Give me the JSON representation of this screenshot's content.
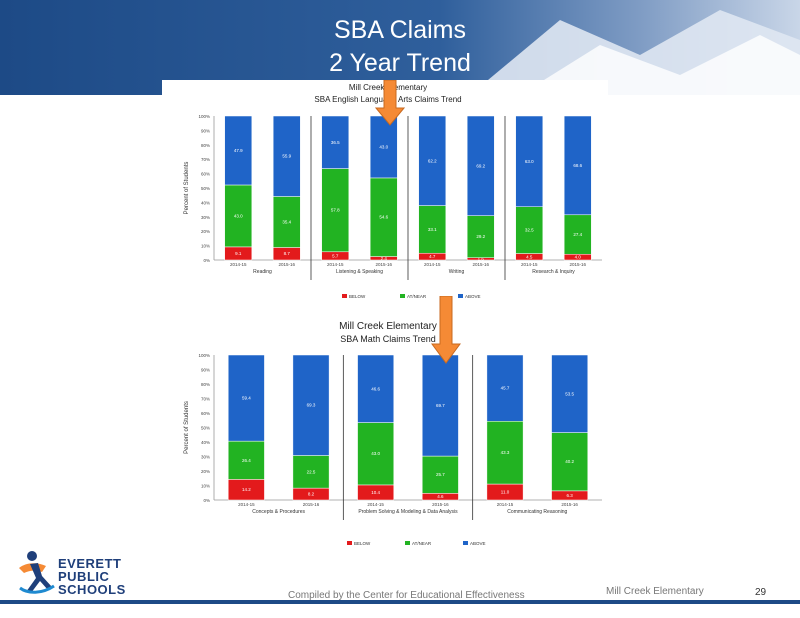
{
  "slide": {
    "title_line1": "SBA Claims",
    "title_line2": "2 Year Trend",
    "logo": {
      "line1": "EVERETT",
      "line2": "PUBLIC",
      "line3": "SCHOOLS"
    },
    "footer_center": "Compiled by the Center for Educational Effectiveness",
    "footer_right": "Mill Creek Elementary",
    "page_number": "29",
    "colors": {
      "header_blue": "#1f4e8c",
      "bar_red": "#e31a1c",
      "bar_green": "#22b322",
      "bar_blue": "#1f64c8",
      "arrow_orange": "#f58a35"
    }
  },
  "chart_data": [
    {
      "type": "bar",
      "stacked": true,
      "title": "Mill Creek Elementary",
      "subtitle": "SBA English Language Arts Claims Trend",
      "ylabel": "Percent of Students",
      "ylim": [
        0,
        100
      ],
      "yticks": [
        "0%",
        "10%",
        "20%",
        "30%",
        "40%",
        "50%",
        "60%",
        "70%",
        "80%",
        "90%",
        "100%"
      ],
      "groups": [
        "Reading",
        "Listening & Speaking",
        "Writing",
        "Research & Inquiry"
      ],
      "categories": [
        "2014-15",
        "2015-16",
        "2014-15",
        "2015-16",
        "2014-15",
        "2015-16",
        "2014-15",
        "2015-16"
      ],
      "series": [
        {
          "name": "BELOW",
          "color": "#e31a1c",
          "values": [
            9.1,
            8.7,
            5.7,
            2.4,
            4.7,
            1.6,
            4.5,
            4.0
          ]
        },
        {
          "name": "AT/NEAR",
          "color": "#22b322",
          "values": [
            43.0,
            35.4,
            57.8,
            54.6,
            33.1,
            29.2,
            32.5,
            27.4
          ]
        },
        {
          "name": "ABOVE",
          "color": "#1f64c8",
          "values": [
            47.9,
            55.9,
            36.5,
            43.0,
            62.2,
            69.2,
            63.0,
            68.6
          ]
        }
      ]
    },
    {
      "type": "bar",
      "stacked": true,
      "title": "Mill Creek Elementary",
      "subtitle": "SBA Math Claims Trend",
      "ylabel": "Percent of Students",
      "ylim": [
        0,
        100
      ],
      "yticks": [
        "0%",
        "10%",
        "20%",
        "30%",
        "40%",
        "50%",
        "60%",
        "70%",
        "80%",
        "90%",
        "100%"
      ],
      "groups": [
        "Concepts & Procedures",
        "Problem Solving & Modeling & Data Analysis",
        "Communicating Reasoning"
      ],
      "categories": [
        "2014-15",
        "2015-16",
        "2014-15",
        "2015-16",
        "2014-15",
        "2015-16"
      ],
      "series": [
        {
          "name": "BELOW",
          "color": "#e31a1c",
          "values": [
            14.2,
            8.2,
            10.4,
            4.6,
            11.0,
            6.3
          ]
        },
        {
          "name": "AT/NEAR",
          "color": "#22b322",
          "values": [
            26.4,
            22.5,
            43.0,
            25.7,
            43.3,
            40.2
          ]
        },
        {
          "name": "ABOVE",
          "color": "#1f64c8",
          "values": [
            59.4,
            69.3,
            46.6,
            69.7,
            45.7,
            53.5
          ]
        }
      ]
    }
  ]
}
